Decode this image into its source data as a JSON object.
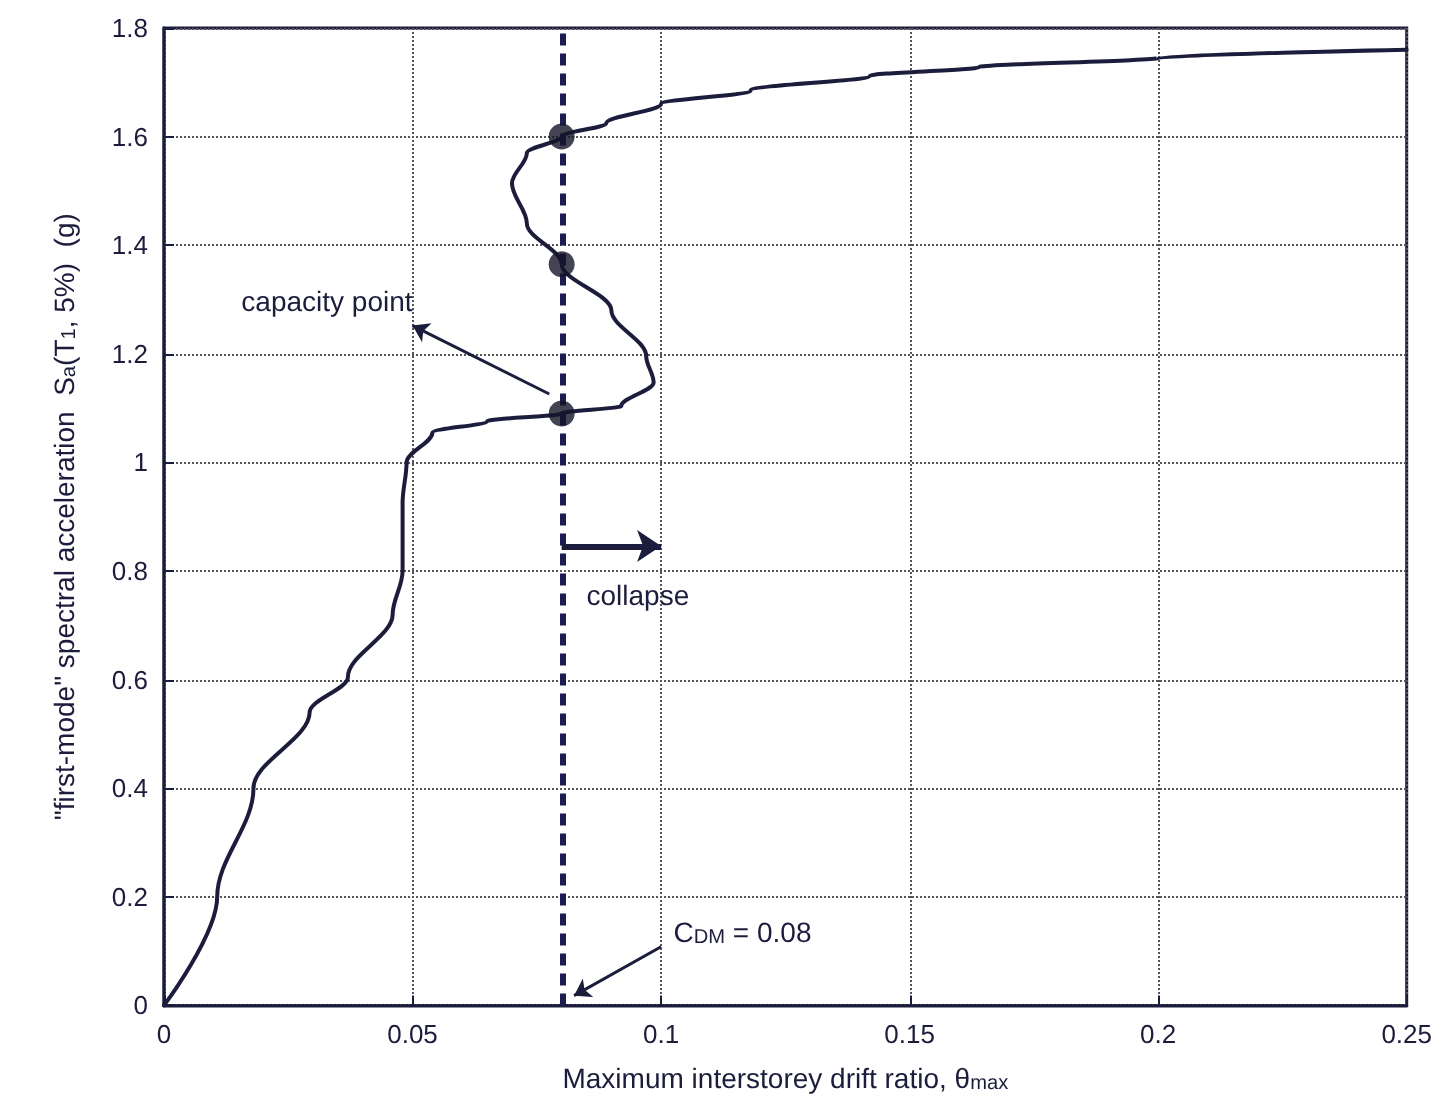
{
  "chart_data": {
    "type": "line",
    "xlabel": "Maximum interstorey drift ratio, θ$_{max}$",
    "ylabel": "\"first-mode\" spectral acceleration  S$_{a}$(T$_{1}$, 5%)  (g)",
    "xlim": [
      0,
      0.25
    ],
    "xticks": [
      0,
      0.05,
      0.1,
      0.15,
      0.2,
      0.25
    ],
    "ylim": [
      0,
      1.8
    ],
    "yticks": [
      0,
      0.2,
      0.4,
      0.6,
      0.8,
      1,
      1.2,
      1.4,
      1.6,
      1.8
    ],
    "grid": true,
    "series": [
      {
        "marker": "none",
        "line_style": "solid",
        "color": "#1c1c3c",
        "x": [
          0,
          0.0107,
          0.018,
          0.0293,
          0.037,
          0.046,
          0.048,
          0.048,
          0.0488,
          0.054,
          0.065,
          0.08,
          0.092,
          0.0985,
          0.097,
          0.09,
          0.08,
          0.073,
          0.07,
          0.073,
          0.08,
          0.089,
          0.1,
          0.118,
          0.142,
          0.164,
          0.2,
          0.25
        ],
        "values": [
          0,
          0.2,
          0.4,
          0.54,
          0.605,
          0.72,
          0.8,
          0.926,
          1,
          1.055,
          1.076,
          1.09,
          1.104,
          1.147,
          1.196,
          1.28,
          1.365,
          1.44,
          1.514,
          1.57,
          1.6,
          1.625,
          1.66,
          1.685,
          1.712,
          1.728,
          1.745,
          1.76
        ]
      },
      {
        "type": "scatter",
        "marker": "circle",
        "color": "#141428",
        "x": [
          0.08,
          0.08,
          0.08
        ],
        "values": [
          1.09,
          1.365,
          1.6
        ]
      }
    ],
    "ref_lines": [
      {
        "axis": "x",
        "value": 0.08,
        "label": "C$_{DM}$ = 0.08",
        "color": "#1c1c50",
        "line_style": "dashed"
      }
    ],
    "annotations": [
      "capacity point",
      "collapse"
    ]
  }
}
